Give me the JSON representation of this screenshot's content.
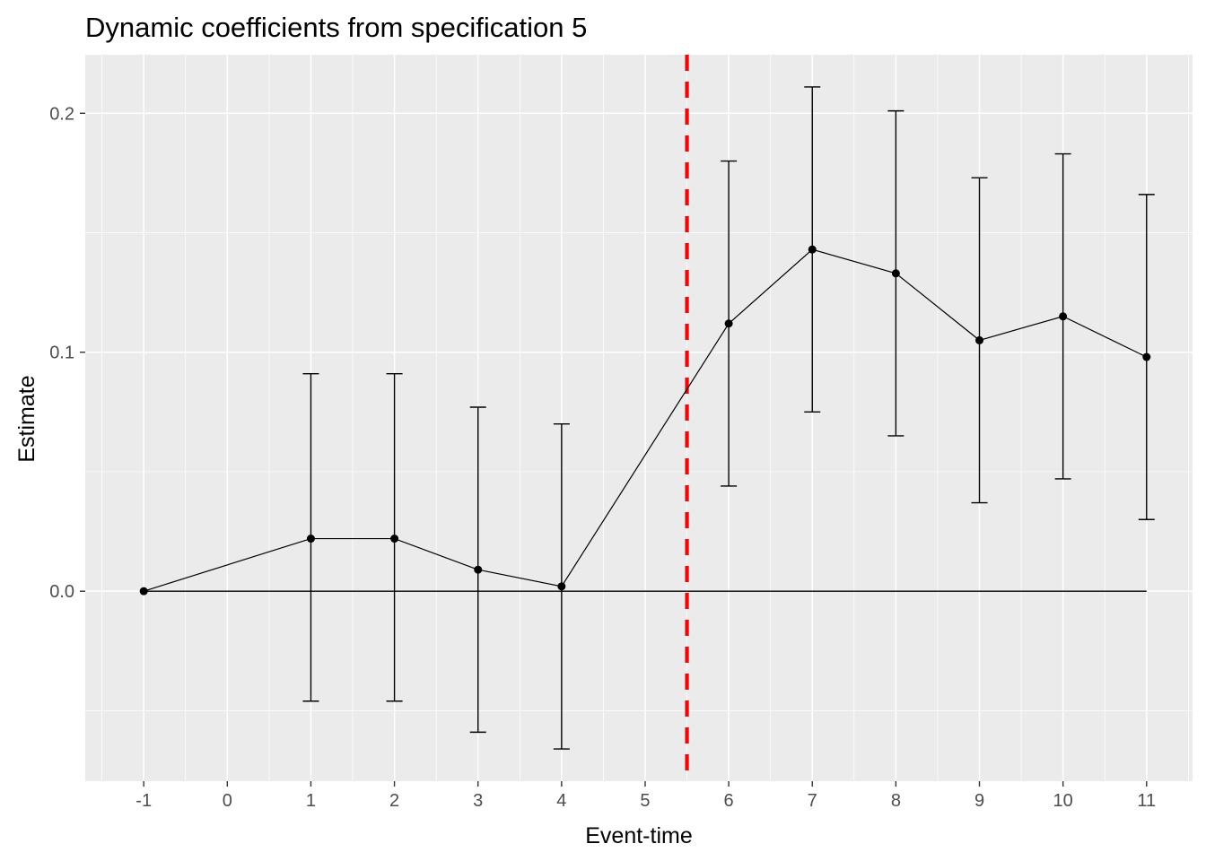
{
  "chart_data": {
    "type": "line",
    "title": "Dynamic coefficients from specification 5",
    "xlabel": "Event-time",
    "ylabel": "Estimate",
    "x_ticks": [
      "-1",
      "0",
      "1",
      "2",
      "3",
      "4",
      "5",
      "6",
      "7",
      "8",
      "9",
      "10",
      "11"
    ],
    "y_ticks": [
      "0.0",
      "0.1",
      "0.2"
    ],
    "xlim": [
      -1.7,
      11.55
    ],
    "ylim": [
      -0.0795,
      0.2245
    ],
    "grid": true,
    "reference_lines": {
      "horizontal": {
        "y": 0,
        "x_from": -1,
        "x_to": 11,
        "color": "#000000"
      },
      "vertical": {
        "x": 5.5,
        "style": "dashed",
        "color": "#ff0000"
      }
    },
    "series": [
      {
        "x": [
          -1,
          1,
          2,
          3,
          4,
          6,
          7,
          8,
          9,
          10,
          11
        ],
        "values": [
          0.0,
          0.022,
          0.022,
          0.009,
          0.002,
          0.112,
          0.143,
          0.133,
          0.105,
          0.115,
          0.098
        ],
        "ci_low": [
          0.0,
          -0.046,
          -0.046,
          -0.059,
          -0.066,
          0.044,
          0.075,
          0.065,
          0.037,
          0.047,
          0.03
        ],
        "ci_high": [
          0.0,
          0.091,
          0.091,
          0.077,
          0.07,
          0.18,
          0.211,
          0.201,
          0.173,
          0.183,
          0.166
        ],
        "color": "#000000"
      }
    ],
    "colors": {
      "panel_background": "#ebebeb",
      "grid": "#ffffff",
      "tick_text": "#4d4d4d",
      "tick_mark": "#333333"
    }
  }
}
